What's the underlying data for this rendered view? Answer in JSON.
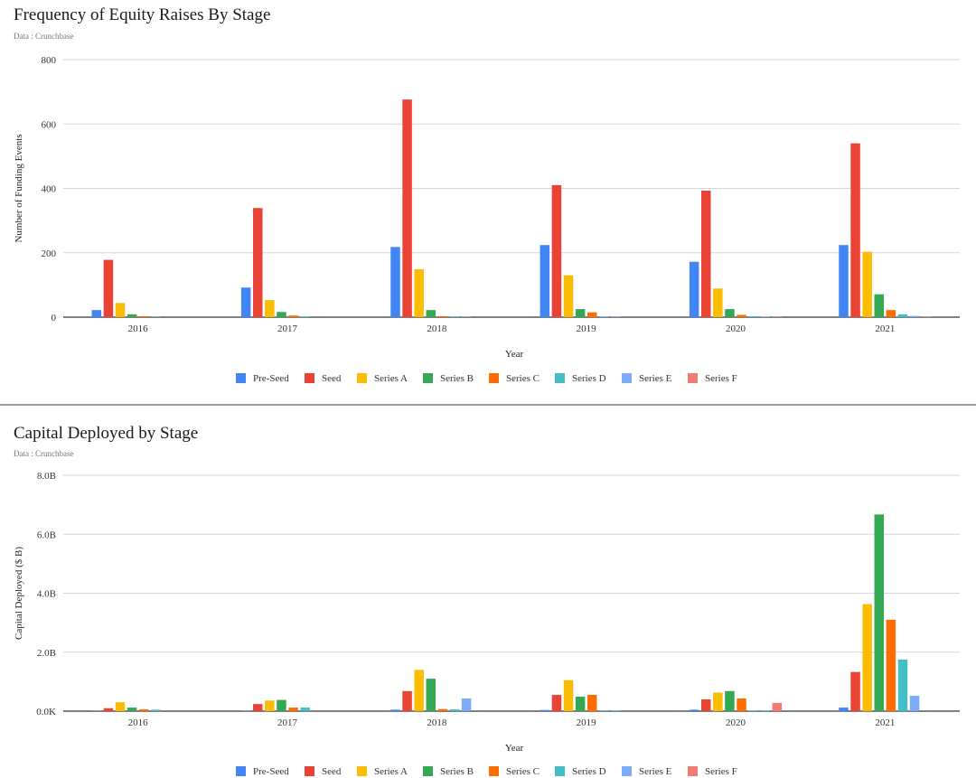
{
  "chart_data": [
    {
      "type": "bar",
      "title": "Frequency of Equity Raises By Stage",
      "subtitle": "Data : Crunchbase",
      "xlabel": "Year",
      "ylabel": "Number of Funding Events",
      "ylim": [
        0,
        800
      ],
      "yticks": [
        "0",
        "200",
        "400",
        "600",
        "800"
      ],
      "ytick_values": [
        0,
        200,
        400,
        600,
        800
      ],
      "grid": true,
      "legend": "bottom",
      "categories": [
        "2016",
        "2017",
        "2018",
        "2019",
        "2020",
        "2021"
      ],
      "series": [
        {
          "name": "Pre-Seed",
          "color": "#4285f4",
          "values": [
            22,
            92,
            218,
            224,
            172,
            224
          ]
        },
        {
          "name": "Seed",
          "color": "#ea4335",
          "values": [
            178,
            339,
            676,
            410,
            393,
            540
          ]
        },
        {
          "name": "Series A",
          "color": "#fbbc04",
          "values": [
            44,
            53,
            149,
            130,
            89,
            203
          ]
        },
        {
          "name": "Series B",
          "color": "#34a853",
          "values": [
            9,
            16,
            22,
            25,
            25,
            71
          ]
        },
        {
          "name": "Series C",
          "color": "#ff6d01",
          "values": [
            3,
            5,
            3,
            15,
            7,
            22
          ]
        },
        {
          "name": "Series D",
          "color": "#46bdc6",
          "values": [
            1,
            2,
            2,
            2,
            3,
            9
          ]
        },
        {
          "name": "Series E",
          "color": "#7baaf7",
          "values": [
            0,
            0,
            1,
            1,
            2,
            4
          ]
        },
        {
          "name": "Series F",
          "color": "#f07b72",
          "values": [
            0,
            0,
            0,
            0,
            1,
            1
          ]
        }
      ]
    },
    {
      "type": "bar",
      "title": "Capital Deployed by Stage",
      "subtitle": "Data : Crunchbase",
      "xlabel": "Year",
      "ylabel": "Capital Deployed ($ B)",
      "ylim": [
        0,
        8
      ],
      "yticks": [
        "0.0K",
        "2.0B",
        "4.0B",
        "6.0B",
        "8.0B"
      ],
      "ytick_values": [
        0,
        2,
        4,
        6,
        8
      ],
      "grid": true,
      "legend": "bottom",
      "categories": [
        "2016",
        "2017",
        "2018",
        "2019",
        "2020",
        "2021"
      ],
      "series": [
        {
          "name": "Pre-Seed",
          "color": "#4285f4",
          "values": [
            0.01,
            0.02,
            0.05,
            0.04,
            0.05,
            0.12
          ]
        },
        {
          "name": "Seed",
          "color": "#ea4335",
          "values": [
            0.1,
            0.24,
            0.68,
            0.55,
            0.4,
            1.33
          ]
        },
        {
          "name": "Series A",
          "color": "#fbbc04",
          "values": [
            0.3,
            0.36,
            1.4,
            1.05,
            0.63,
            3.63
          ]
        },
        {
          "name": "Series B",
          "color": "#34a853",
          "values": [
            0.12,
            0.38,
            1.1,
            0.49,
            0.68,
            6.67
          ]
        },
        {
          "name": "Series C",
          "color": "#ff6d01",
          "values": [
            0.06,
            0.12,
            0.07,
            0.55,
            0.43,
            3.1
          ]
        },
        {
          "name": "Series D",
          "color": "#46bdc6",
          "values": [
            0.05,
            0.12,
            0.06,
            0.01,
            0.02,
            1.75
          ]
        },
        {
          "name": "Series E",
          "color": "#7baaf7",
          "values": [
            0,
            0,
            0.43,
            0.03,
            0.03,
            0.52
          ]
        },
        {
          "name": "Series F",
          "color": "#f07b72",
          "values": [
            0,
            0,
            0,
            0,
            0.28,
            0
          ]
        }
      ]
    }
  ]
}
